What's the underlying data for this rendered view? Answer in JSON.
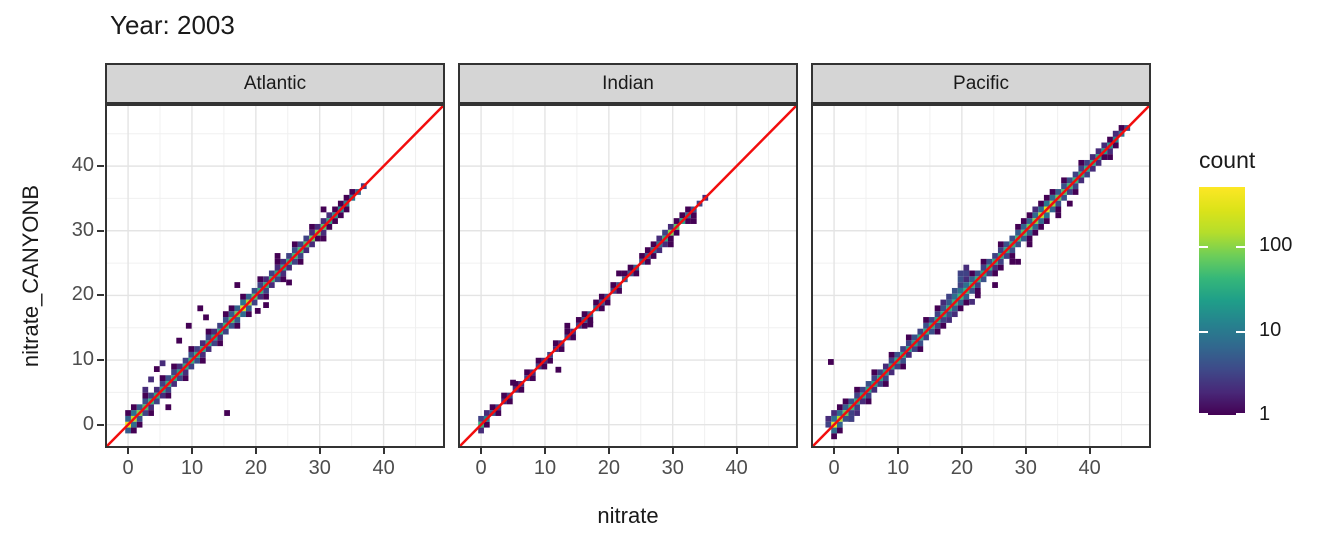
{
  "title": "Year: 2003",
  "axes": {
    "x_label": "nitrate",
    "y_label": "nitrate_CANYONB",
    "ticks": [
      0,
      10,
      20,
      30,
      40
    ],
    "minor": [
      5,
      15,
      25,
      35,
      45
    ],
    "domain": [
      -3.3,
      49.3
    ]
  },
  "legend": {
    "title": "count",
    "labels": [
      "100",
      "10",
      "1"
    ],
    "tick_counts": [
      100,
      10,
      1
    ],
    "max_count": 500
  },
  "colors": {
    "background": "#ffffff",
    "red_line": "#f20d0d",
    "strip_fill": "#d5d5d5",
    "panel_border": "#333333",
    "grid_major": "#e4e4e4",
    "grid_minor": "#f0f0f0",
    "axis_text": "#4d4d4d",
    "viridis": [
      [
        0,
        "#440154"
      ],
      [
        0.1,
        "#482878"
      ],
      [
        0.2,
        "#3e4a89"
      ],
      [
        0.3,
        "#31688e"
      ],
      [
        0.4,
        "#26828e"
      ],
      [
        0.5,
        "#1f9e89"
      ],
      [
        0.6,
        "#35b779"
      ],
      [
        0.7,
        "#6ece58"
      ],
      [
        0.8,
        "#b5de2b"
      ],
      [
        0.9,
        "#dce319"
      ],
      [
        1,
        "#fde725"
      ]
    ]
  },
  "chart_data": {
    "type": "heatmap",
    "title": "Year: 2003",
    "xlabel": "nitrate",
    "ylabel": "nitrate_CANYONB",
    "fill_scale": "log10 count, viridis, 1 to 500",
    "binwidth": 0.9,
    "xlim": [
      -3.3,
      49.3
    ],
    "ylim": [
      -3.3,
      49.3
    ],
    "abline": {
      "slope": 1,
      "intercept": 0
    },
    "facets": [
      {
        "label": "Atlantic",
        "diag_start": 0,
        "step": 0.9,
        "runs": [
          {
            "dy": 0,
            "counts": [
              380,
              160,
              90,
              55,
              42,
              32,
              28,
              34,
              30,
              26,
              32,
              38,
              34,
              28,
              30,
              26,
              32,
              40,
              55,
              80,
              230,
              130,
              60,
              36,
              30,
              40,
              30,
              28,
              34,
              44,
              48,
              55,
              75,
              90,
              60,
              30,
              18,
              15,
              12,
              9,
              6,
              3
            ]
          },
          {
            "dy": 0.9,
            "counts": [
              6,
              8,
              5,
              4,
              3,
              2,
              3,
              4,
              3,
              2,
              3,
              4,
              3,
              2,
              3,
              2,
              3,
              4,
              5,
              6,
              8,
              6,
              4,
              3,
              2,
              3,
              2,
              2,
              3,
              4,
              3,
              3,
              2,
              2,
              2,
              2,
              1,
              1,
              1,
              1,
              0,
              0
            ]
          },
          {
            "dy": -0.9,
            "counts": [
              5,
              7,
              4,
              3,
              2,
              3,
              2,
              3,
              2,
              3,
              2,
              3,
              4,
              2,
              2,
              3,
              2,
              3,
              4,
              5,
              7,
              5,
              3,
              2,
              3,
              2,
              3,
              2,
              2,
              3,
              3,
              2,
              2,
              1,
              2,
              1,
              1,
              1,
              1,
              0,
              0,
              0
            ]
          },
          {
            "dy": 1.8,
            "counts": [
              1,
              1,
              0,
              1,
              0,
              0,
              1,
              0,
              1,
              0,
              0,
              1,
              0,
              0,
              1,
              0,
              0,
              1,
              1,
              0,
              1,
              0,
              0,
              1,
              0,
              0,
              1,
              0,
              0,
              1,
              0,
              0,
              1,
              0,
              0,
              0,
              0,
              0,
              0,
              0,
              0,
              0
            ]
          },
          {
            "dy": -1.8,
            "counts": [
              0,
              1,
              1,
              0,
              1,
              0,
              0,
              1,
              0,
              0,
              1,
              0,
              0,
              1,
              0,
              0,
              1,
              0,
              0,
              1,
              0,
              1,
              0,
              0,
              1,
              0,
              0,
              1,
              0,
              0,
              1,
              0,
              0,
              0,
              1,
              0,
              0,
              0,
              0,
              0,
              0,
              0
            ]
          }
        ],
        "extras": [
          [
            15.5,
            1.8,
            1
          ],
          [
            9.5,
            15.3,
            1
          ],
          [
            11.3,
            18,
            1
          ],
          [
            12.2,
            16.6,
            1
          ],
          [
            8,
            13,
            1
          ],
          [
            4.5,
            8.6,
            1
          ],
          [
            5.4,
            9.5,
            2
          ],
          [
            3.6,
            7,
            2
          ],
          [
            20.3,
            17.6,
            1
          ],
          [
            21.6,
            18.5,
            1
          ],
          [
            6.3,
            2.7,
            1
          ],
          [
            25.2,
            22,
            1
          ],
          [
            30.6,
            33.3,
            1
          ],
          [
            17.1,
            21.6,
            1
          ],
          [
            23.4,
            26.1,
            1
          ],
          [
            2.7,
            5.4,
            2
          ]
        ]
      },
      {
        "label": "Indian",
        "diag_start": 0,
        "step": 0.9,
        "runs": [
          {
            "dy": 0,
            "counts": [
              35,
              12,
              5,
              3,
              2,
              3,
              2,
              2,
              3,
              2,
              3,
              2,
              3,
              2,
              2,
              3,
              2,
              3,
              4,
              5,
              6,
              4,
              3,
              3,
              4,
              5,
              4,
              6,
              5,
              4,
              6,
              8,
              30,
              90,
              60,
              25,
              8,
              4,
              3,
              2
            ]
          },
          {
            "dy": 0.9,
            "counts": [
              3,
              2,
              1,
              0,
              1,
              0,
              1,
              0,
              1,
              0,
              1,
              0,
              0,
              1,
              0,
              1,
              0,
              1,
              1,
              0,
              1,
              1,
              0,
              1,
              0,
              1,
              1,
              0,
              1,
              1,
              1,
              2,
              3,
              2,
              1,
              1,
              1,
              0,
              0,
              0
            ]
          },
          {
            "dy": -0.9,
            "counts": [
              2,
              1,
              0,
              1,
              0,
              1,
              0,
              1,
              0,
              1,
              0,
              1,
              1,
              0,
              1,
              0,
              1,
              0,
              1,
              1,
              0,
              1,
              1,
              0,
              1,
              0,
              0,
              1,
              0,
              1,
              1,
              2,
              2,
              1,
              1,
              0,
              1,
              1,
              0,
              0
            ]
          }
        ],
        "extras": [
          [
            12.1,
            8.5,
            1
          ],
          [
            13.5,
            15.3,
            1
          ],
          [
            29.7,
            27.9,
            1
          ],
          [
            33.3,
            31.5,
            1
          ],
          [
            5,
            6.5,
            1
          ],
          [
            21.6,
            23.4,
            1
          ],
          [
            17.1,
            15.5,
            1
          ]
        ]
      },
      {
        "label": "Pacific",
        "diag_start": 0,
        "step": 0.9,
        "runs": [
          {
            "dy": 0,
            "counts": [
              320,
              140,
              70,
              45,
              30,
              25,
              28,
              24,
              26,
              22,
              26,
              30,
              28,
              24,
              26,
              30,
              34,
              30,
              28,
              32,
              36,
              40,
              44,
              40,
              36,
              34,
              30,
              34,
              30,
              28,
              32,
              36,
              44,
              55,
              70,
              90,
              150,
              260,
              120,
              70,
              55,
              45,
              40,
              36,
              32,
              30,
              26,
              22,
              18,
              12,
              8,
              4
            ]
          },
          {
            "dy": 0.9,
            "counts": [
              8,
              7,
              5,
              4,
              3,
              3,
              4,
              3,
              3,
              2,
              3,
              4,
              3,
              3,
              4,
              3,
              4,
              3,
              3,
              4,
              5,
              8,
              9,
              8,
              6,
              4,
              3,
              4,
              3,
              3,
              4,
              4,
              5,
              6,
              6,
              7,
              8,
              9,
              7,
              5,
              4,
              4,
              3,
              3,
              3,
              2,
              2,
              2,
              1,
              1,
              1,
              0
            ]
          },
          {
            "dy": -0.9,
            "counts": [
              7,
              6,
              4,
              3,
              3,
              2,
              3,
              2,
              3,
              3,
              2,
              3,
              4,
              2,
              3,
              4,
              3,
              4,
              3,
              3,
              4,
              5,
              6,
              5,
              4,
              3,
              4,
              3,
              2,
              3,
              3,
              4,
              4,
              5,
              6,
              6,
              7,
              8,
              6,
              4,
              4,
              3,
              3,
              2,
              3,
              2,
              2,
              1,
              2,
              1,
              0,
              0
            ]
          },
          {
            "dy": 1.8,
            "counts": [
              2,
              1,
              1,
              0,
              1,
              0,
              0,
              1,
              0,
              0,
              1,
              0,
              0,
              1,
              0,
              0,
              1,
              0,
              1,
              2,
              3,
              4,
              3,
              2,
              1,
              0,
              1,
              0,
              0,
              1,
              0,
              0,
              1,
              1,
              1,
              2,
              1,
              1,
              1,
              0,
              1,
              0,
              0,
              1,
              0,
              0,
              0,
              0,
              0,
              0,
              0,
              0
            ]
          },
          {
            "dy": -1.8,
            "counts": [
              1,
              1,
              0,
              1,
              0,
              0,
              1,
              0,
              0,
              1,
              0,
              0,
              1,
              0,
              0,
              1,
              0,
              0,
              1,
              1,
              2,
              2,
              1,
              1,
              0,
              1,
              0,
              0,
              1,
              0,
              0,
              1,
              0,
              0,
              1,
              1,
              1,
              1,
              0,
              1,
              0,
              0,
              1,
              0,
              0,
              0,
              0,
              0,
              0,
              0,
              0,
              0
            ]
          }
        ],
        "extras": [
          [
            -0.5,
            9.7,
            1
          ],
          [
            19.8,
            23.4,
            3
          ],
          [
            20.7,
            24.3,
            2
          ],
          [
            19.8,
            22.5,
            4
          ],
          [
            20.7,
            23.4,
            3
          ],
          [
            25.2,
            21.6,
            1
          ],
          [
            26.1,
            24.3,
            1
          ],
          [
            27.9,
            25.2,
            1
          ],
          [
            28.8,
            25.2,
            1
          ],
          [
            30.6,
            27.9,
            1
          ],
          [
            35.1,
            32.4,
            1
          ],
          [
            3.6,
            1.8,
            2
          ],
          [
            2.7,
            0.9,
            3
          ],
          [
            43.2,
            41.4,
            1
          ],
          [
            44.1,
            45,
            2
          ],
          [
            36.9,
            34.2,
            1
          ],
          [
            -0.9,
            0.9,
            2
          ],
          [
            -0.9,
            0,
            3
          ],
          [
            21.6,
            19,
            2
          ],
          [
            22.5,
            20,
            1
          ]
        ]
      }
    ]
  }
}
